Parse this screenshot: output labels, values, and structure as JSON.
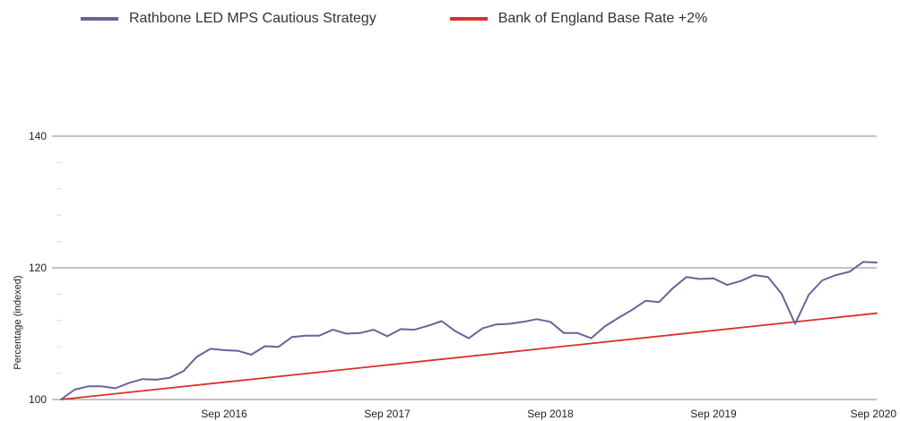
{
  "chart_data": {
    "type": "line",
    "title": "",
    "xlabel": "",
    "ylabel": "Percentage (indexed)",
    "ylim": [
      100,
      140
    ],
    "y_ticks": [
      100,
      120,
      140
    ],
    "y_minor_ticks": [
      104,
      108,
      112,
      116,
      124,
      128,
      132,
      136
    ],
    "x_ticks": [
      {
        "label": "Sep 2016",
        "x": 12
      },
      {
        "label": "Sep 2017",
        "x": 24
      },
      {
        "label": "Sep 2018",
        "x": 36
      },
      {
        "label": "Sep 2019",
        "x": 48
      },
      {
        "label": "Sep 2020",
        "x": 60
      }
    ],
    "xlim": [
      0,
      60
    ],
    "grid": "horizontal major lines",
    "legend_position": "top",
    "series": [
      {
        "name": "Rathbone LED MPS Cautious Strategy",
        "color": "#6b629a",
        "x": [
          0,
          1,
          2,
          3,
          4,
          5,
          6,
          7,
          8,
          9,
          10,
          11,
          12,
          13,
          14,
          15,
          16,
          17,
          18,
          19,
          20,
          21,
          22,
          23,
          24,
          25,
          26,
          27,
          28,
          29,
          30,
          31,
          32,
          33,
          34,
          35,
          36,
          37,
          38,
          39,
          40,
          41,
          42,
          43,
          44,
          45,
          46,
          47,
          48,
          49,
          50,
          51,
          52,
          53,
          54,
          55,
          56,
          57,
          58,
          59,
          60
        ],
        "values": [
          100.0,
          101.5,
          102.0,
          102.0,
          101.7,
          102.5,
          103.1,
          103.0,
          103.3,
          104.3,
          106.5,
          107.7,
          107.5,
          107.4,
          106.8,
          108.1,
          108.0,
          109.5,
          109.7,
          109.7,
          110.6,
          110.0,
          110.1,
          110.6,
          109.6,
          110.7,
          110.6,
          111.2,
          111.9,
          110.4,
          109.3,
          110.8,
          111.4,
          111.5,
          111.8,
          112.2,
          111.8,
          110.1,
          110.1,
          109.3,
          111.1,
          112.4,
          113.6,
          115.0,
          114.8,
          116.9,
          118.6,
          118.3,
          118.4,
          117.4,
          118.0,
          118.9,
          118.6,
          116.1,
          111.5,
          115.9,
          118.1,
          118.9,
          119.4,
          120.9,
          120.8
        ]
      },
      {
        "name": "Bank of England Base Rate +2%",
        "color": "#d9312b",
        "x": [
          0,
          60
        ],
        "values": [
          100.0,
          113.1
        ]
      }
    ]
  }
}
